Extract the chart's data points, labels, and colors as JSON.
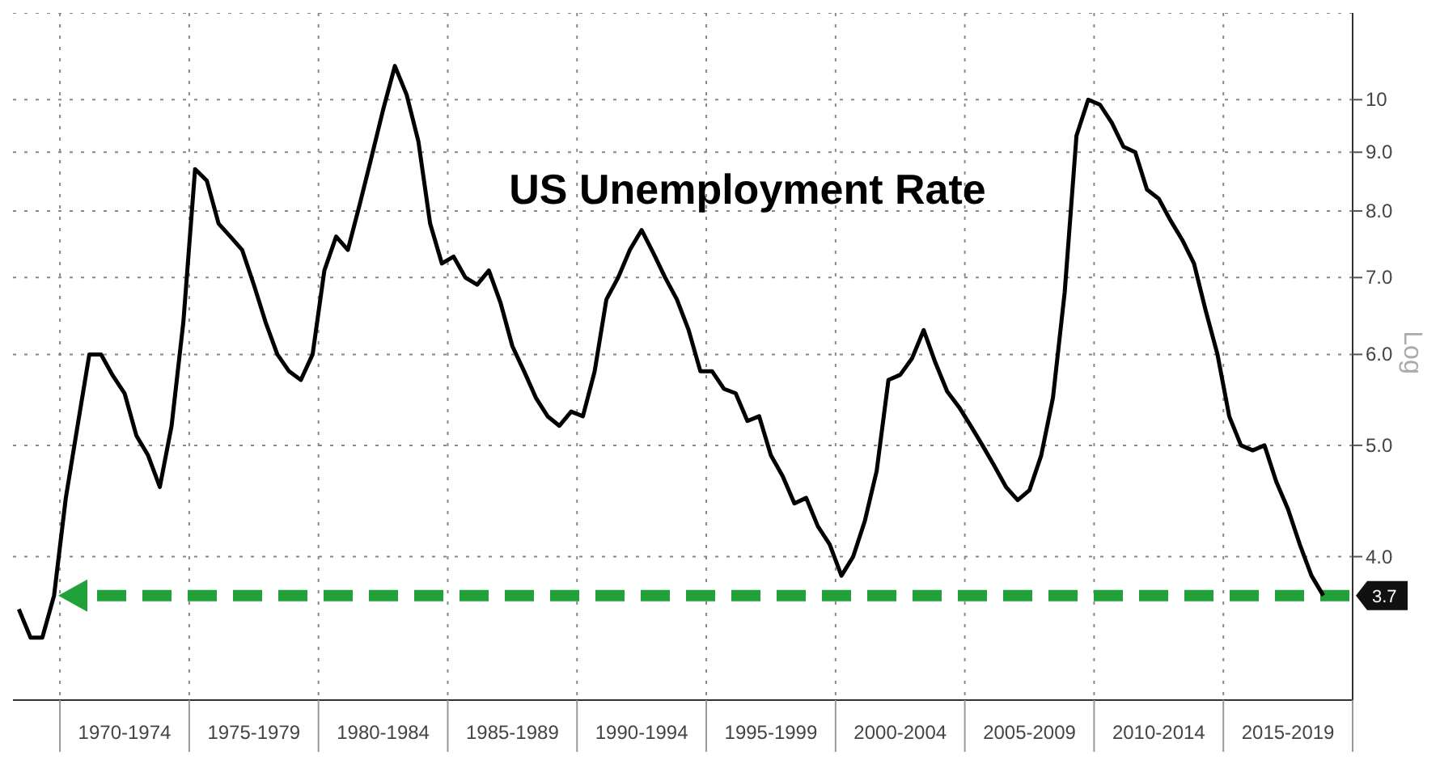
{
  "chart_data": {
    "type": "line",
    "title": "US Unemployment Rate",
    "ylabel": "Log",
    "categories": [
      null,
      null,
      null,
      null,
      null,
      null,
      null,
      null,
      null,
      "1970-1974",
      null,
      null,
      null,
      null,
      null,
      null,
      null,
      null,
      null,
      null,
      "1975-1979",
      null,
      null,
      null,
      null,
      null,
      null,
      null,
      null,
      null,
      null,
      "1980-1984",
      null,
      null,
      null,
      null,
      null,
      null,
      null,
      null,
      null,
      null,
      "1985-1989",
      null,
      null,
      null,
      null,
      null,
      null,
      null,
      null,
      null,
      null,
      "1990-1994",
      null,
      null,
      null,
      null,
      null,
      null,
      null,
      null,
      null,
      null,
      "1995-1999",
      null,
      null,
      null,
      null,
      null,
      null,
      null,
      null,
      null,
      null,
      "2000-2004",
      null,
      null,
      null,
      null,
      null,
      null,
      null,
      null,
      null,
      null,
      "2005-2009",
      null,
      null,
      null,
      null,
      null,
      null,
      null,
      null,
      null,
      null,
      "2010-2014",
      null,
      null,
      null,
      null,
      null,
      null,
      null,
      null,
      null,
      null,
      "2015-2019",
      null,
      null,
      null,
      null,
      null
    ],
    "series": [
      {
        "color": "#000000",
        "values": [
          3.6,
          3.4,
          3.4,
          3.7,
          4.5,
          5.2,
          6.0,
          6.0,
          5.75,
          5.55,
          5.1,
          4.9,
          4.6,
          5.2,
          6.4,
          8.7,
          8.5,
          7.8,
          7.6,
          7.4,
          6.9,
          6.4,
          6.0,
          5.8,
          5.7,
          6.0,
          7.1,
          7.6,
          7.4,
          8.1,
          8.9,
          9.8,
          10.7,
          10.1,
          9.2,
          7.8,
          7.2,
          7.3,
          7.0,
          6.9,
          7.1,
          6.65,
          6.1,
          5.8,
          5.5,
          5.3,
          5.2,
          5.35,
          5.3,
          5.8,
          6.7,
          7.0,
          7.4,
          7.7,
          7.35,
          7.0,
          6.7,
          6.3,
          5.8,
          5.8,
          5.6,
          5.55,
          5.25,
          5.3,
          4.9,
          4.7,
          4.45,
          4.5,
          4.25,
          4.1,
          3.85,
          4.0,
          4.3,
          4.75,
          5.7,
          5.76,
          5.95,
          6.3,
          5.9,
          5.57,
          5.4,
          5.2,
          5.0,
          4.8,
          4.6,
          4.48,
          4.57,
          4.9,
          5.5,
          6.8,
          9.3,
          10.0,
          9.9,
          9.55,
          9.1,
          9.0,
          8.35,
          8.2,
          7.85,
          7.55,
          7.2,
          6.55,
          6.0,
          5.3,
          5.0,
          4.95,
          5.0,
          4.65,
          4.4,
          4.1,
          3.85,
          3.7,
          null,
          null
        ]
      }
    ],
    "ylim": [
      3.0,
      11.9
    ],
    "yticks": [
      {
        "value": 4,
        "label": "4.0"
      },
      {
        "value": 5,
        "label": "5.0"
      },
      {
        "value": 6,
        "label": "6.0"
      },
      {
        "value": 7,
        "label": "7.0"
      },
      {
        "value": 8,
        "label": "8.0"
      },
      {
        "value": 9,
        "label": "9.0"
      },
      10
    ],
    "log": "y",
    "grid": true,
    "legend": false,
    "marker": "none",
    "line_style": "solid",
    "ref_lines": [
      {
        "axis": "y",
        "value": 3.7,
        "label": "3.7",
        "color": "#22a03a",
        "line_style": "dashed"
      }
    ]
  }
}
